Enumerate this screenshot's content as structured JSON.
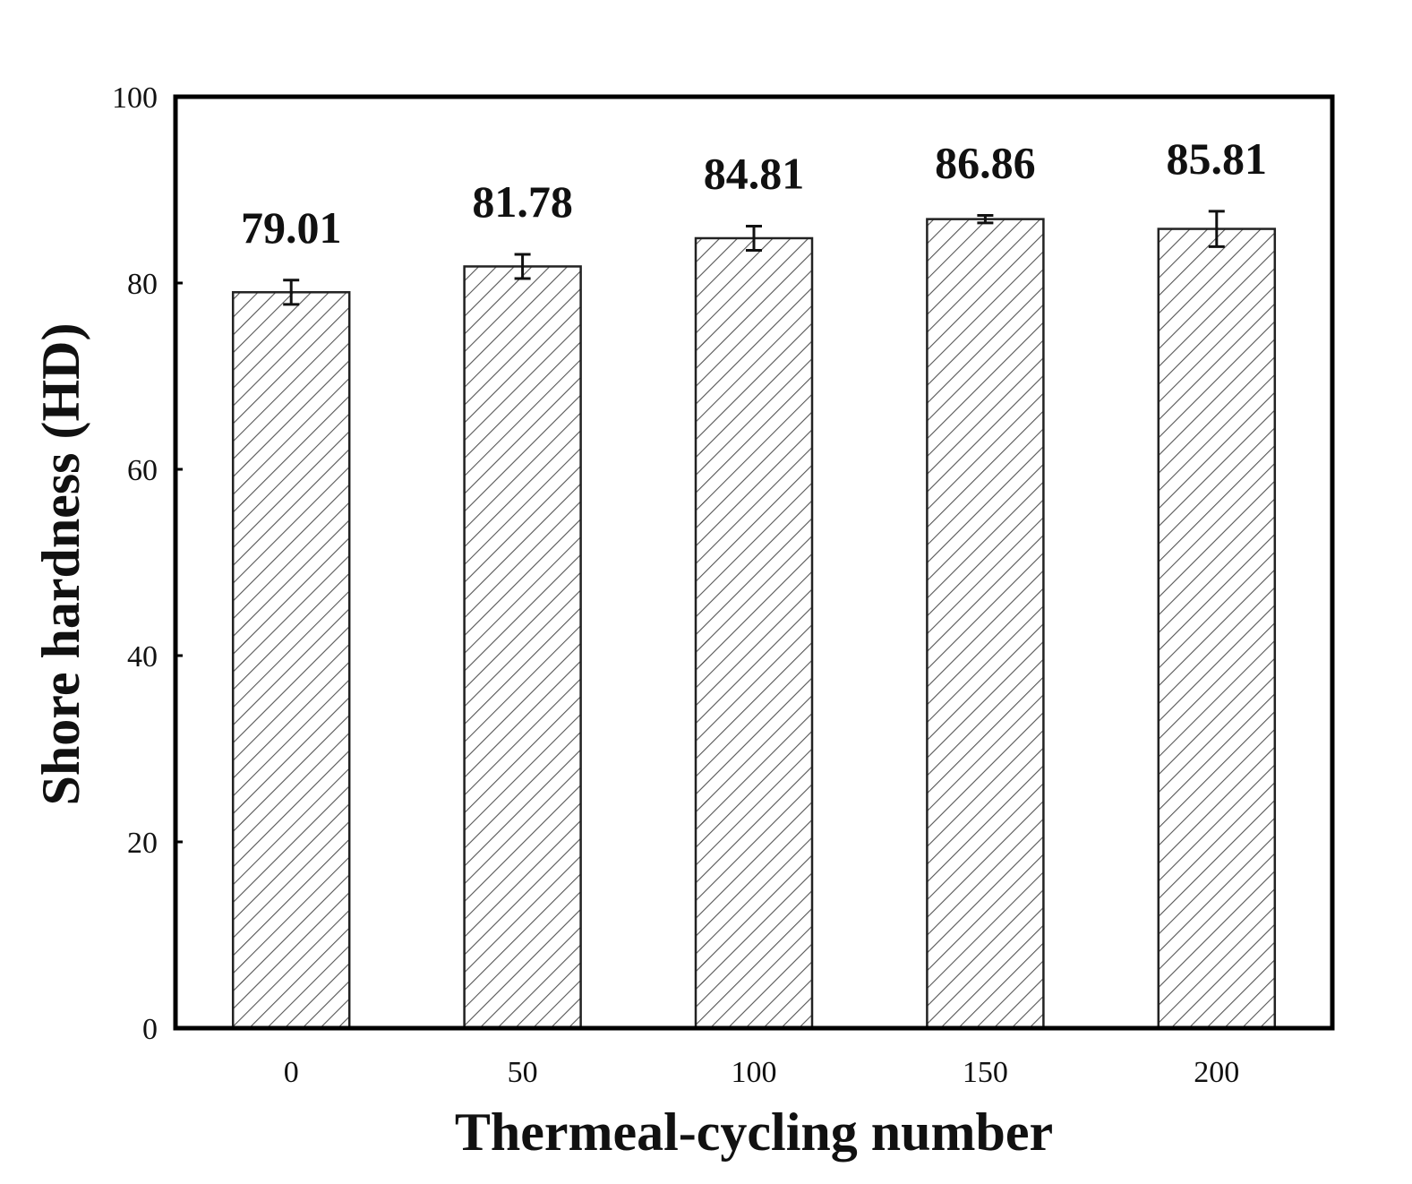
{
  "chart_data": {
    "type": "bar",
    "title": "",
    "xlabel": "Thermeal-cycling number",
    "ylabel": "Shore hardness (HD)",
    "categories": [
      "0",
      "50",
      "100",
      "150",
      "200"
    ],
    "values": [
      79.01,
      81.78,
      84.81,
      86.86,
      85.81
    ],
    "value_labels": [
      "79.01",
      "81.78",
      "84.81",
      "86.86",
      "85.81"
    ],
    "errors": [
      1.3,
      1.3,
      1.3,
      0.4,
      1.9
    ],
    "ylim": [
      0,
      100
    ],
    "yticks": [
      0,
      20,
      40,
      60,
      80,
      100
    ],
    "ytick_labels": [
      "0",
      "20",
      "40",
      "60",
      "80",
      "100"
    ],
    "grid": false,
    "bar_fill": "hatched",
    "colors": {
      "bar_edge": "#222222",
      "hatch": "#555555",
      "axis": "#000000"
    }
  }
}
